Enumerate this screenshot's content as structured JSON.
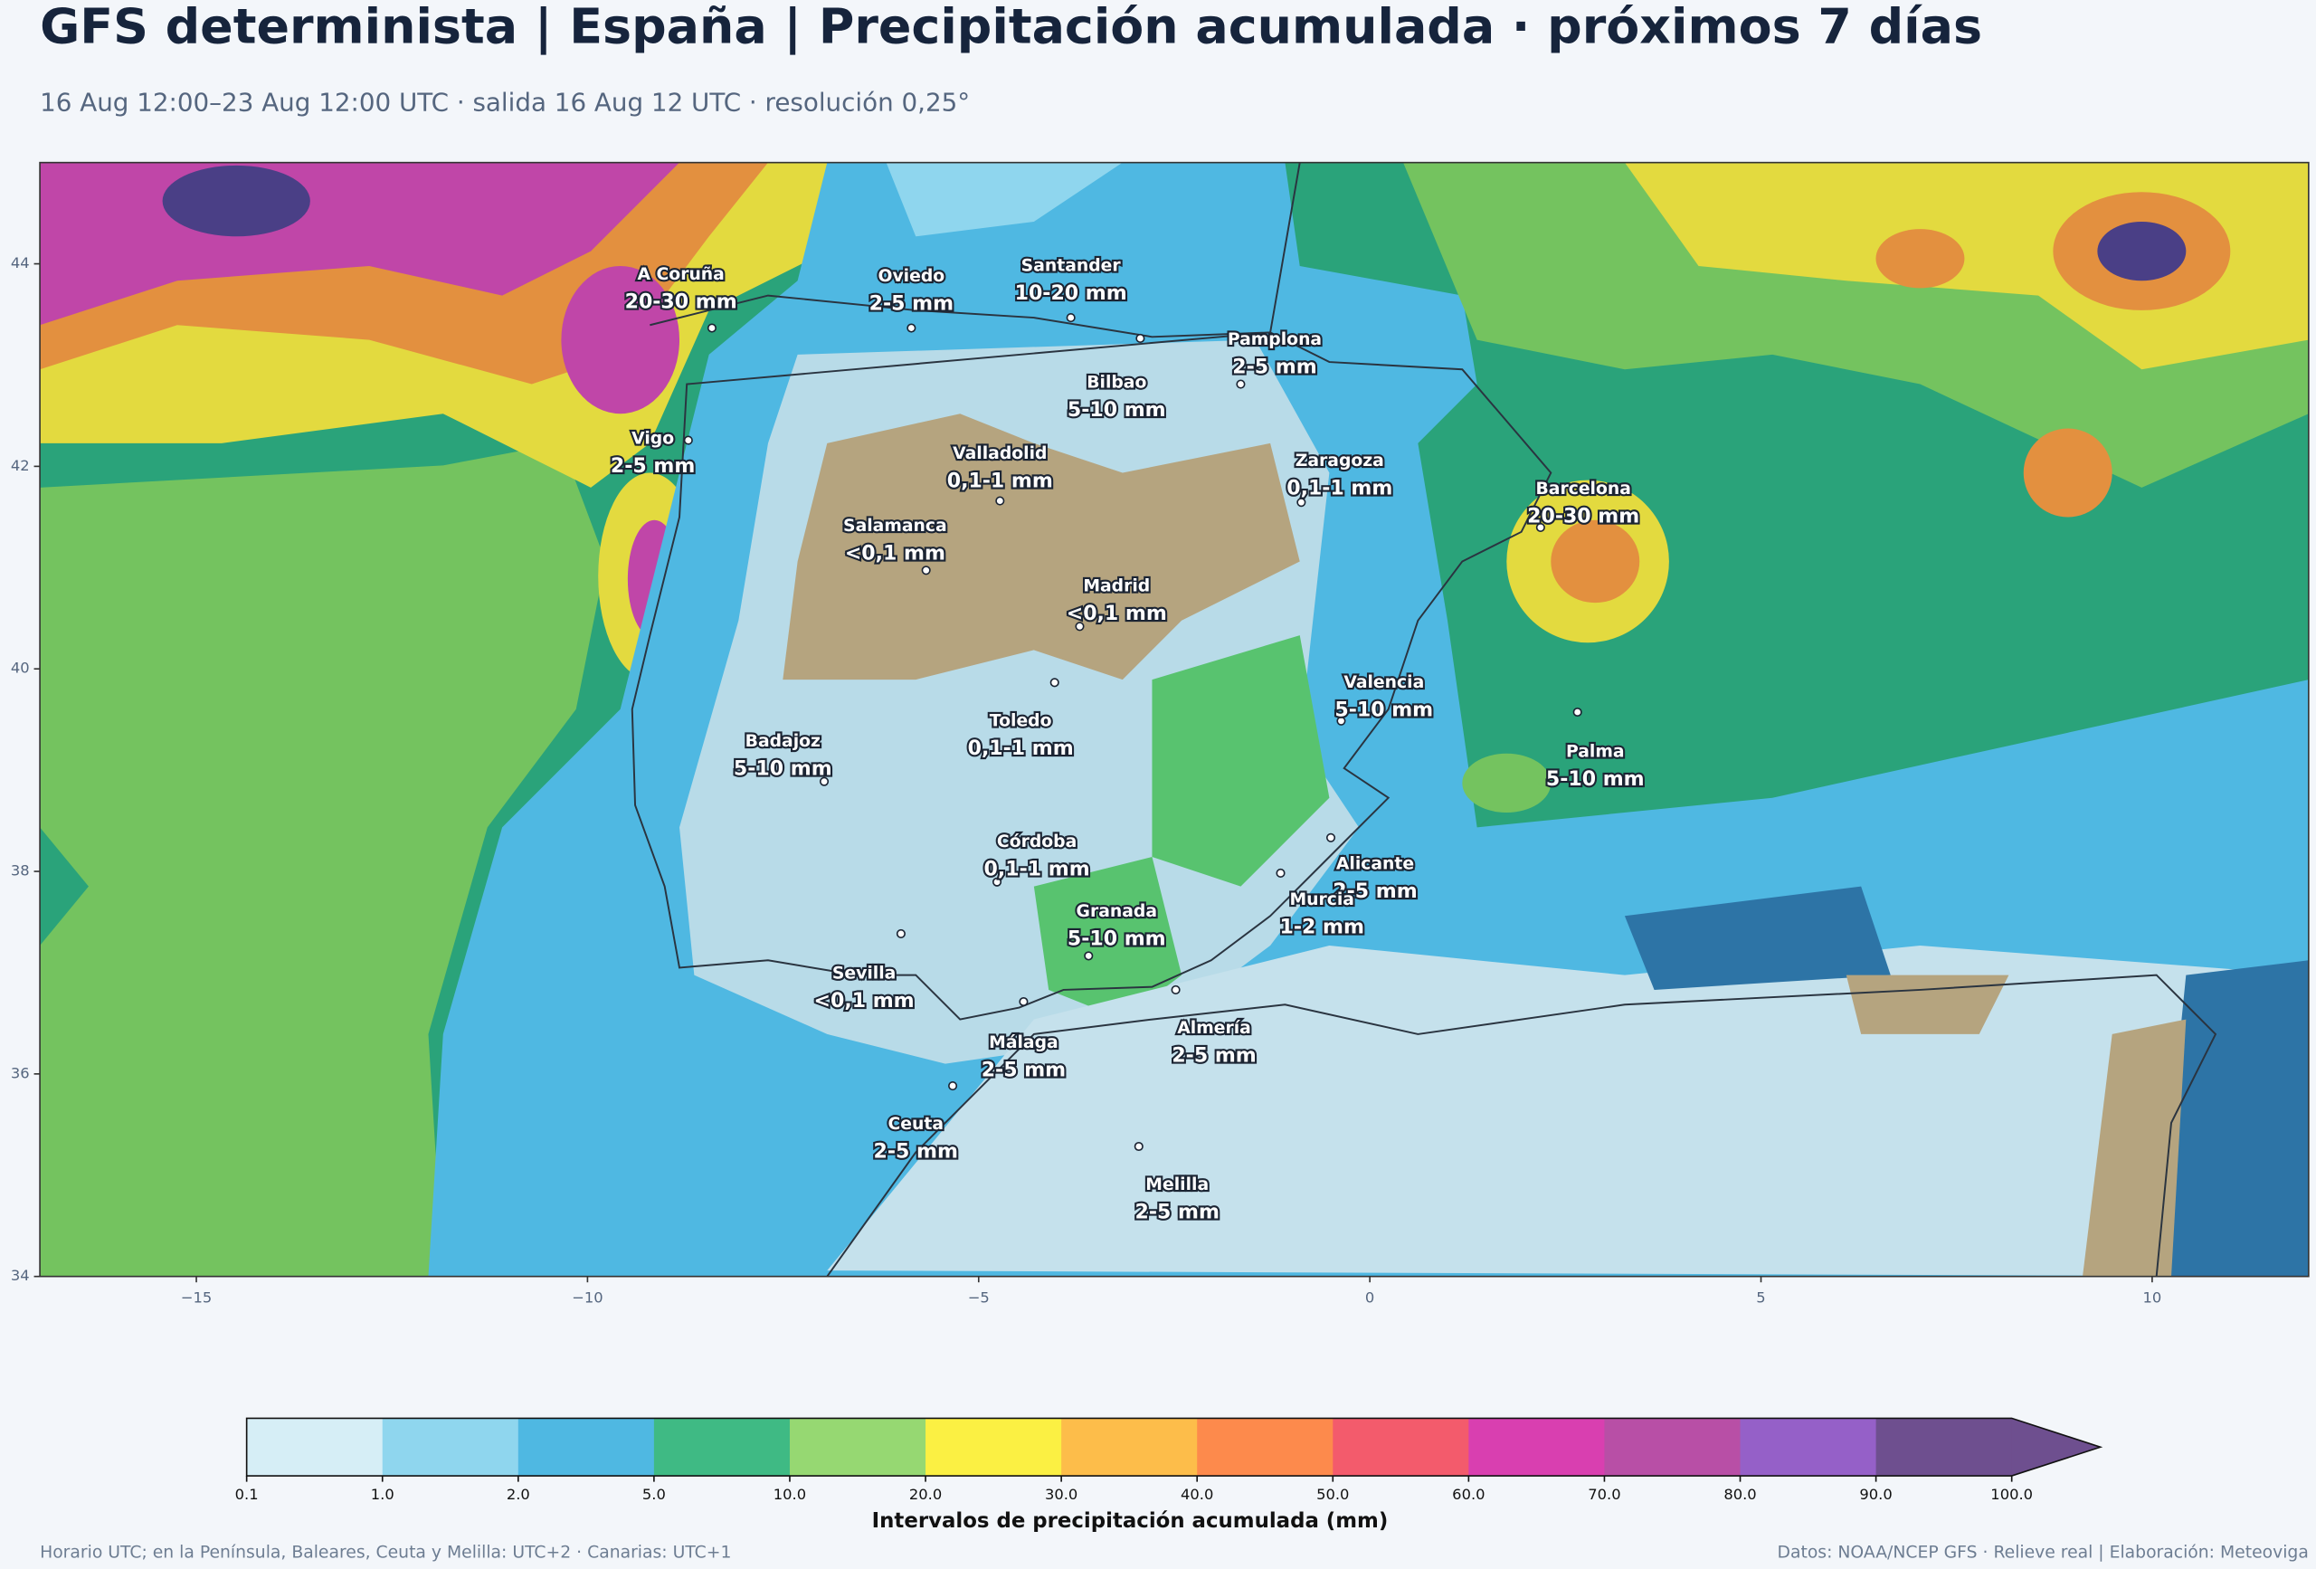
{
  "header": {
    "title": "GFS determinista | España | Precipitación acumulada · próximos 7 días",
    "subtitle": "16 Aug 12:00–23 Aug 12:00 UTC · salida 16 Aug 12 UTC · resolución 0,25°"
  },
  "map": {
    "xlim": [
      -17,
      12
    ],
    "ylim": [
      34,
      45
    ],
    "xticks": [
      {
        "value": -15,
        "label": "−15"
      },
      {
        "value": -10,
        "label": "−10"
      },
      {
        "value": -5,
        "label": "−5"
      },
      0,
      5,
      10
    ],
    "yticks": [
      34,
      36,
      38,
      40,
      42,
      44
    ],
    "cities": [
      {
        "name": "A Coruña",
        "precip": "20-30 mm"
      },
      {
        "name": "Oviedo",
        "precip": "2-5 mm"
      },
      {
        "name": "Santander",
        "precip": "10-20 mm"
      },
      {
        "name": "Bilbao",
        "precip": "5-10 mm"
      },
      {
        "name": "Pamplona",
        "precip": "2-5 mm"
      },
      {
        "name": "Vigo",
        "precip": "2-5 mm"
      },
      {
        "name": "Valladolid",
        "precip": "0,1-1 mm"
      },
      {
        "name": "Zaragoza",
        "precip": "0,1-1 mm"
      },
      {
        "name": "Barcelona",
        "precip": "20-30 mm"
      },
      {
        "name": "Salamanca",
        "precip": "<0,1 mm"
      },
      {
        "name": "Madrid",
        "precip": "<0,1 mm"
      },
      {
        "name": "Valencia",
        "precip": "5-10 mm"
      },
      {
        "name": "Toledo",
        "precip": "0,1-1 mm"
      },
      {
        "name": "Badajoz",
        "precip": "5-10 mm"
      },
      {
        "name": "Palma",
        "precip": "5-10 mm"
      },
      {
        "name": "Córdoba",
        "precip": "0,1-1 mm"
      },
      {
        "name": "Alicante",
        "precip": "2-5 mm"
      },
      {
        "name": "Granada",
        "precip": "5-10 mm"
      },
      {
        "name": "Murcia",
        "precip": "1-2 mm"
      },
      {
        "name": "Sevilla",
        "precip": "<0,1 mm"
      },
      {
        "name": "Almería",
        "precip": "2-5 mm"
      },
      {
        "name": "Málaga",
        "precip": "2-5 mm"
      },
      {
        "name": "Ceuta",
        "precip": "2-5 mm"
      },
      {
        "name": "Melilla",
        "precip": "2-5 mm"
      }
    ]
  },
  "colorbar": {
    "label": "Intervalos de precipitación acumulada (mm)",
    "ticks": [
      0.1,
      {
        "value": 1,
        "label": "1.0"
      },
      {
        "value": 2,
        "label": "2.0"
      },
      {
        "value": 5,
        "label": "5.0"
      },
      {
        "value": 10,
        "label": "10.0"
      },
      {
        "value": 20,
        "label": "20.0"
      },
      {
        "value": 30,
        "label": "30.0"
      },
      {
        "value": 40,
        "label": "40.0"
      },
      {
        "value": 50,
        "label": "50.0"
      },
      {
        "value": 60,
        "label": "60.0"
      },
      {
        "value": 70,
        "label": "70.0"
      },
      {
        "value": 80,
        "label": "80.0"
      },
      {
        "value": 90,
        "label": "90.0"
      },
      {
        "value": 100,
        "label": "100.0"
      }
    ],
    "colors": [
      "#d6eef6",
      "#8fd6ee",
      "#4fb8e2",
      "#3fba84",
      "#96d872",
      "#fbf043",
      "#fdbd4a",
      "#fd8a4c",
      "#f35b6c",
      "#d93fb0",
      "#b84fa6",
      "#9560c8",
      "#6e4f8f"
    ]
  },
  "footer": {
    "left": "Horario UTC; en la Península, Baleares, Ceuta y Melilla: UTC+2 · Canarias: UTC+1",
    "right": "Datos: NOAA/NCEP GFS · Relieve real | Elaboración: Meteoviga"
  }
}
